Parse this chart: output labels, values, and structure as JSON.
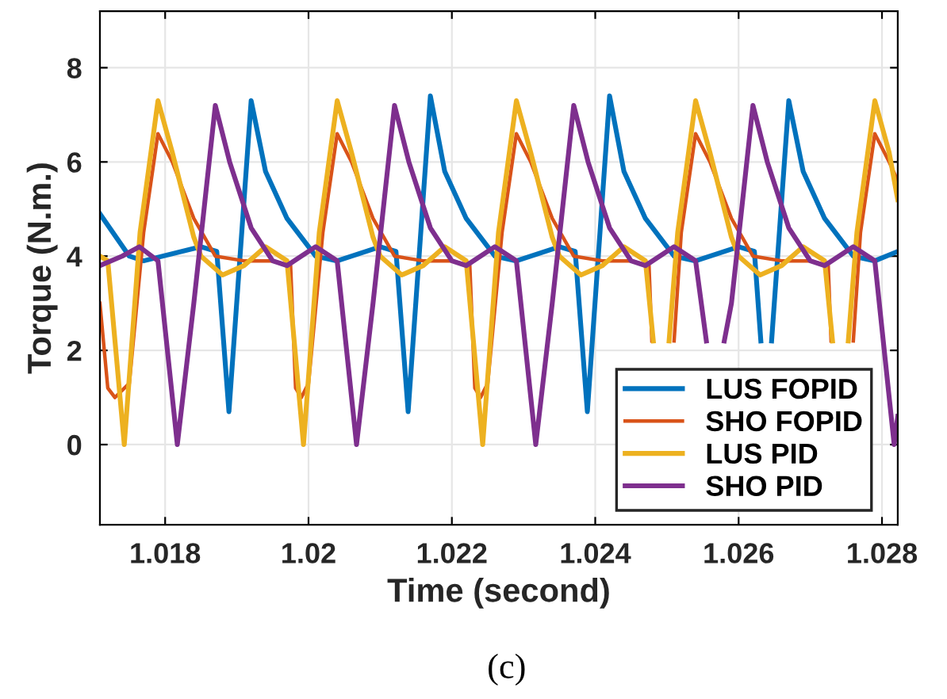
{
  "chart_data": {
    "type": "line",
    "xlabel": "Time (second)",
    "ylabel": "Torque (N.m.)",
    "annotations": [
      "(c)"
    ],
    "xlim": [
      1.01709,
      1.02822
    ],
    "ylim": [
      -1.7,
      9.2
    ],
    "xticks": [
      1.018,
      1.02,
      1.022,
      1.024,
      1.026,
      1.028
    ],
    "yticks": [
      0,
      2,
      4,
      6,
      8
    ],
    "grid": true,
    "legend": "bottom right",
    "series": [
      {
        "name": "LUS FOPID",
        "color": "#0072bd",
        "x": [
          1.01709,
          1.0175,
          1.0177,
          1.0185,
          1.01872,
          1.01889,
          1.0192,
          1.0194,
          1.0197,
          1.0201,
          1.0204,
          1.021,
          1.02122,
          1.02139,
          1.0217,
          1.0219,
          1.0222,
          1.0226,
          1.0229,
          1.0235,
          1.02372,
          1.02389,
          1.0242,
          1.0244,
          1.0247,
          1.0251,
          1.0254,
          1.026,
          1.02622,
          1.02631,
          1.02639,
          1.02646,
          1.0267,
          1.0269,
          1.0272,
          1.0276,
          1.0279,
          1.02822
        ],
        "values": [
          4.9,
          4.0,
          3.9,
          4.2,
          4.1,
          0.7,
          7.3,
          5.8,
          4.8,
          4.0,
          3.9,
          4.2,
          4.1,
          0.7,
          7.4,
          5.8,
          4.8,
          4.0,
          3.9,
          4.2,
          4.1,
          0.7,
          7.4,
          5.8,
          4.8,
          4.0,
          3.9,
          4.2,
          4.1,
          2.2,
          null,
          2.2,
          7.3,
          5.8,
          4.8,
          4.0,
          3.9,
          4.1
        ]
      },
      {
        "name": "SHO FOPID",
        "color": "#d95319",
        "x": [
          1.01709,
          1.0172,
          1.0173,
          1.0175,
          1.0177,
          1.0179,
          1.0181,
          1.0184,
          1.0187,
          1.0191,
          1.0195,
          1.01975,
          1.01982,
          1.0199,
          1.02,
          1.0202,
          1.0204,
          1.0206,
          1.0209,
          1.0212,
          1.0216,
          1.022,
          1.02225,
          1.02232,
          1.0224,
          1.0225,
          1.0227,
          1.0229,
          1.0231,
          1.0234,
          1.0237,
          1.0241,
          1.0245,
          1.02475,
          1.02479,
          1.0249,
          1.0251,
          1.0252,
          1.0254,
          1.0256,
          1.0259,
          1.0262,
          1.0266,
          1.027,
          1.02725,
          1.02729,
          1.0274,
          1.0276,
          1.0277,
          1.0279,
          1.0281,
          1.02822
        ],
        "values": [
          3.0,
          1.2,
          1.0,
          1.3,
          4.5,
          6.6,
          6.0,
          4.8,
          4.0,
          3.9,
          3.9,
          3.8,
          1.2,
          1.0,
          1.3,
          4.5,
          6.6,
          6.0,
          4.8,
          4.0,
          3.9,
          3.9,
          3.8,
          1.2,
          1.0,
          1.3,
          4.5,
          6.6,
          6.0,
          4.8,
          4.0,
          3.9,
          3.9,
          3.8,
          2.2,
          null,
          2.2,
          4.5,
          6.6,
          6.0,
          4.8,
          4.0,
          3.9,
          3.9,
          3.8,
          2.2,
          null,
          2.2,
          4.5,
          6.6,
          6.0,
          5.6
        ]
      },
      {
        "name": "LUS PID",
        "color": "#edb120",
        "x": [
          1.01709,
          1.0172,
          1.01743,
          1.01765,
          1.0179,
          1.0181,
          1.0184,
          1.0185,
          1.0188,
          1.0191,
          1.0194,
          1.0197,
          1.01993,
          1.02015,
          1.0204,
          1.0206,
          1.0209,
          1.021,
          1.0213,
          1.0216,
          1.0219,
          1.0222,
          1.02243,
          1.02265,
          1.0229,
          1.0231,
          1.0234,
          1.0235,
          1.0238,
          1.0241,
          1.0244,
          1.0247,
          1.02481,
          1.02493,
          1.02503,
          1.02515,
          1.0254,
          1.0256,
          1.0259,
          1.026,
          1.0263,
          1.0266,
          1.0269,
          1.0272,
          1.02731,
          1.02743,
          1.02753,
          1.02765,
          1.0279,
          1.0281,
          1.02822
        ],
        "values": [
          4.0,
          3.9,
          0.0,
          4.5,
          7.3,
          6.2,
          4.4,
          4.0,
          3.6,
          3.8,
          4.2,
          3.9,
          0.0,
          4.5,
          7.3,
          6.2,
          4.4,
          4.0,
          3.6,
          3.8,
          4.2,
          3.9,
          0.0,
          4.5,
          7.3,
          6.2,
          4.4,
          4.0,
          3.6,
          3.8,
          4.2,
          3.9,
          2.2,
          null,
          2.2,
          4.5,
          7.3,
          6.2,
          4.4,
          4.0,
          3.6,
          3.8,
          4.2,
          3.9,
          2.2,
          null,
          2.2,
          4.5,
          7.3,
          6.2,
          5.2
        ]
      },
      {
        "name": "SHO PID",
        "color": "#7e2f8e",
        "x": [
          1.01709,
          1.0174,
          1.01764,
          1.0179,
          1.01817,
          1.0184,
          1.0187,
          1.0189,
          1.0192,
          1.0195,
          1.0197,
          1.0201,
          1.0204,
          1.02067,
          1.0209,
          1.0212,
          1.0214,
          1.0217,
          1.022,
          1.0222,
          1.0226,
          1.0229,
          1.02317,
          1.0234,
          1.0237,
          1.0239,
          1.0242,
          1.0245,
          1.0247,
          1.0251,
          1.0254,
          1.02555,
          1.02567,
          1.0258,
          1.0259,
          1.0262,
          1.0264,
          1.0267,
          1.027,
          1.0272,
          1.0276,
          1.0279,
          1.02817,
          1.02822
        ],
        "values": [
          3.8,
          4.0,
          4.2,
          3.9,
          0.0,
          3.0,
          7.2,
          6.0,
          4.6,
          3.9,
          3.8,
          4.2,
          3.9,
          0.0,
          3.0,
          7.2,
          6.0,
          4.6,
          3.9,
          3.8,
          4.2,
          3.9,
          0.0,
          3.0,
          7.2,
          6.0,
          4.6,
          3.9,
          3.8,
          4.2,
          3.9,
          2.2,
          null,
          2.2,
          3.0,
          7.2,
          6.0,
          4.6,
          3.9,
          3.8,
          4.2,
          3.9,
          0.0,
          0.6
        ]
      }
    ]
  }
}
